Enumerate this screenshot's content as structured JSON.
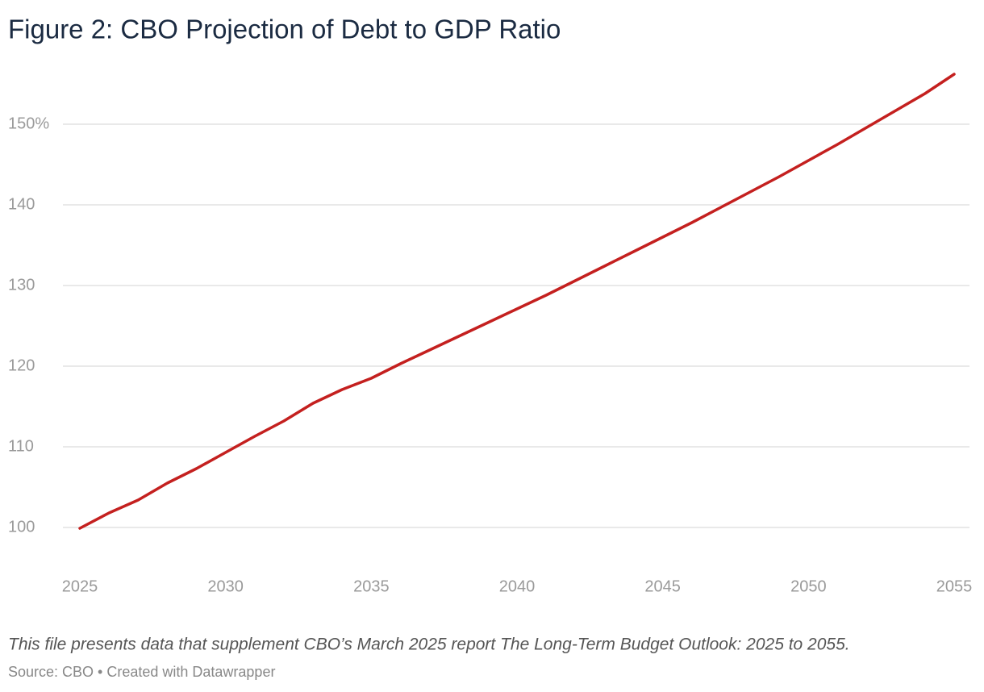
{
  "chart_data": {
    "type": "line",
    "title": "Figure 2: CBO Projection of Debt to GDP Ratio",
    "note": "This file presents data that supplement CBO’s March 2025 report The Long-Term Budget Outlook: 2025 to 2055.",
    "source": "Source: CBO • Created with Datawrapper",
    "x": [
      2025,
      2026,
      2027,
      2028,
      2029,
      2030,
      2031,
      2032,
      2033,
      2034,
      2035,
      2036,
      2037,
      2038,
      2039,
      2040,
      2041,
      2042,
      2043,
      2044,
      2045,
      2046,
      2047,
      2048,
      2049,
      2050,
      2051,
      2052,
      2053,
      2054,
      2055
    ],
    "values": [
      99.9,
      101.8,
      103.4,
      105.5,
      107.3,
      109.3,
      111.3,
      113.2,
      115.4,
      117.1,
      118.5,
      120.3,
      122.0,
      123.7,
      125.4,
      127.1,
      128.8,
      130.6,
      132.4,
      134.2,
      136.0,
      137.8,
      139.7,
      141.6,
      143.5,
      145.5,
      147.5,
      149.6,
      151.7,
      153.8,
      156.2
    ],
    "color": "#c4201f",
    "xlim": [
      2025,
      2055
    ],
    "xticks": [
      2025,
      2030,
      2035,
      2040,
      2045,
      2050,
      2055
    ],
    "ylim": [
      95,
      158
    ],
    "yticks": [
      100,
      110,
      120,
      130,
      140,
      {
        "value": 150,
        "label": "150%"
      }
    ],
    "grid": true
  }
}
